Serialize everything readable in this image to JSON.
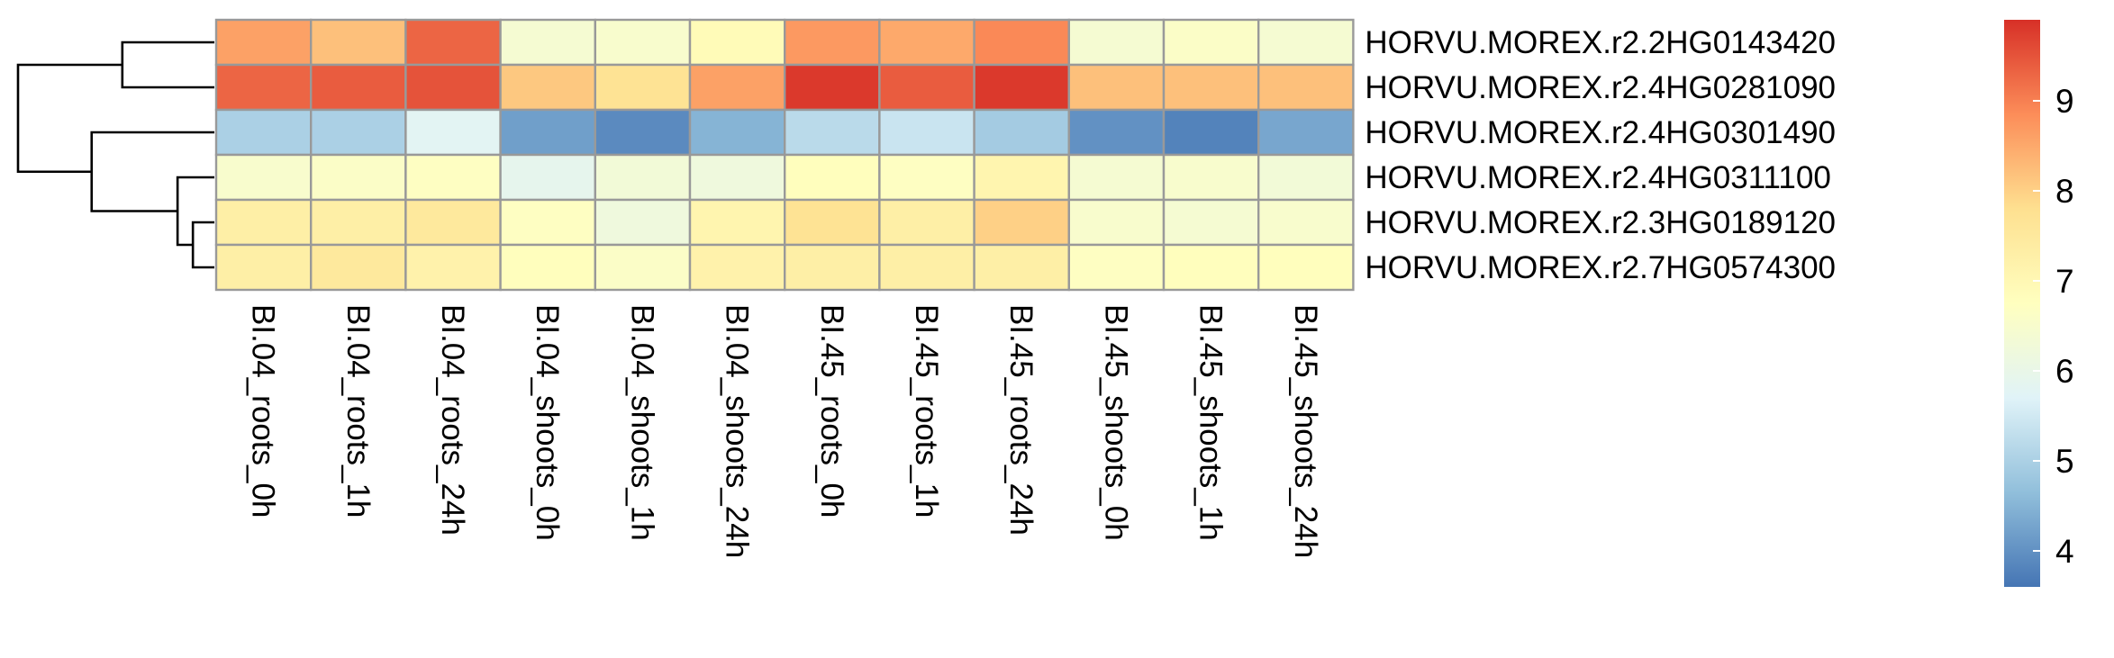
{
  "chart_data": {
    "type": "heatmap",
    "title": "",
    "xlabel": "",
    "ylabel": "",
    "columns": [
      "BI.04_roots_0h",
      "BI.04_roots_1h",
      "BI.04_roots_24h",
      "BI.04_shoots_0h",
      "BI.04_shoots_1h",
      "BI.04_shoots_24h",
      "BI.45_roots_0h",
      "BI.45_roots_1h",
      "BI.45_roots_24h",
      "BI.45_shoots_0h",
      "BI.45_shoots_1h",
      "BI.45_shoots_24h"
    ],
    "rows": [
      "HORVU.MOREX.r2.2HG0143420",
      "HORVU.MOREX.r2.4HG0281090",
      "HORVU.MOREX.r2.4HG0301490",
      "HORVU.MOREX.r2.4HG0311100",
      "HORVU.MOREX.r2.3HG0189120",
      "HORVU.MOREX.r2.7HG0574300"
    ],
    "values": [
      [
        8.6,
        8.2,
        9.3,
        6.4,
        6.5,
        6.9,
        8.7,
        8.5,
        8.9,
        6.4,
        6.6,
        6.4
      ],
      [
        9.3,
        9.4,
        9.5,
        8.1,
        7.7,
        8.6,
        9.8,
        9.4,
        9.8,
        8.2,
        8.2,
        8.2
      ],
      [
        5.0,
        5.0,
        5.8,
        4.2,
        3.9,
        4.5,
        5.2,
        5.4,
        4.9,
        4.0,
        3.8,
        4.3
      ],
      [
        6.5,
        6.6,
        6.7,
        5.9,
        6.3,
        6.2,
        6.8,
        6.7,
        7.1,
        6.4,
        6.5,
        6.3
      ],
      [
        7.3,
        7.3,
        7.5,
        6.7,
        6.2,
        7.1,
        7.7,
        7.3,
        8.0,
        6.5,
        6.4,
        6.5
      ],
      [
        7.3,
        7.5,
        7.2,
        6.8,
        6.6,
        7.2,
        7.3,
        7.3,
        7.3,
        6.7,
        6.8,
        6.8
      ]
    ],
    "colorbar": {
      "min": 3.6,
      "max": 9.9,
      "ticks": [
        4,
        5,
        6,
        7,
        8,
        9
      ]
    },
    "colors": [
      "#4575B4",
      "#91BFDB",
      "#E0F3F8",
      "#FFFFBF",
      "#FEE090",
      "#FC8D59",
      "#D73027"
    ],
    "row_dendrogram": {
      "note_order": "leaves top to bottom match rows",
      "merges": [
        {
          "left": 4,
          "right": 5,
          "height": 0.7
        },
        {
          "left": 3,
          "right": "m0",
          "height": 1.2
        },
        {
          "left": 2,
          "right": "m1",
          "height": 4.0
        },
        {
          "left": 0,
          "right": 1,
          "height": 3.0
        },
        {
          "left": "m3",
          "right": "m2",
          "height": 6.4
        }
      ]
    },
    "legend_position": "right"
  }
}
